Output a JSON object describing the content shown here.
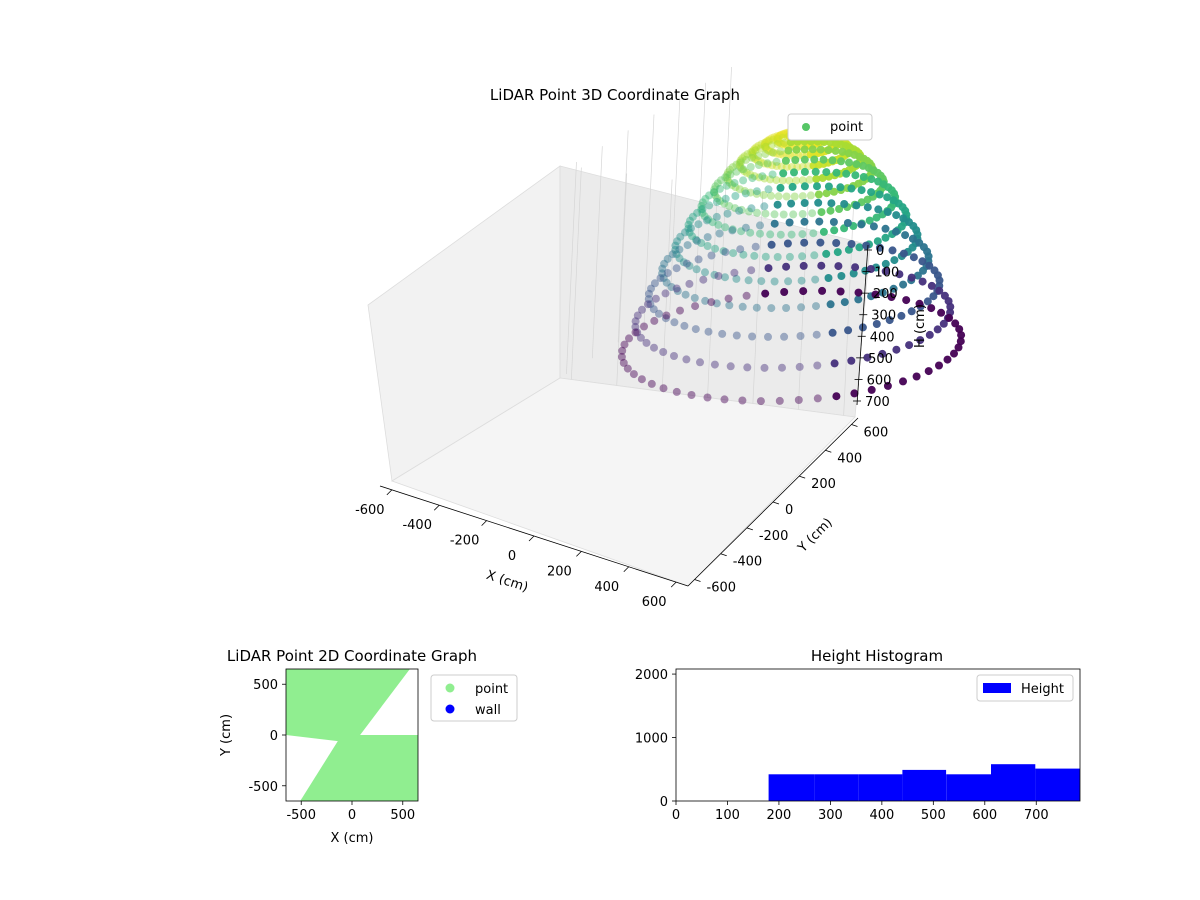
{
  "figure": {
    "background": "#ffffff"
  },
  "chart_data": [
    {
      "type": "scatter",
      "title": "LiDAR Point 3D Coordinate Graph",
      "xlabel": "X (cm)",
      "ylabel": "Y (cm)",
      "zlabel": "H (cm)",
      "xlim": [
        -650,
        650
      ],
      "ylim": [
        -650,
        650
      ],
      "zlim": [
        0,
        780
      ],
      "z_inverted": true,
      "xticks": [
        -600,
        -400,
        -200,
        0,
        200,
        400,
        600
      ],
      "yticks": [
        -600,
        -400,
        -200,
        0,
        200,
        400,
        600
      ],
      "zticks": [
        0,
        100,
        200,
        300,
        400,
        500,
        600,
        700
      ],
      "colormap": "viridis",
      "legend": {
        "entries": [
          {
            "name": "point",
            "color": "#56c667"
          }
        ],
        "placement": "top-right"
      },
      "surface": {
        "shape": "bowl",
        "rim_height": 780,
        "rim_radius": 650,
        "center_height": 0
      },
      "grid": true
    },
    {
      "type": "scatter",
      "title": "LiDAR Point 2D Coordinate Graph",
      "xlabel": "X (cm)",
      "ylabel": "Y (cm)",
      "xlim": [
        -650,
        650
      ],
      "ylim": [
        -650,
        650
      ],
      "xticks": [
        -500,
        0,
        500
      ],
      "yticks": [
        -500,
        0,
        500
      ],
      "legend": {
        "entries": [
          {
            "name": "point",
            "color": "#90ee90"
          },
          {
            "name": "wall",
            "color": "#0000ff"
          }
        ],
        "placement": "outside-right"
      },
      "regions": {
        "upper_boundary": [
          [
            -650,
            650
          ],
          [
            -300,
            650
          ],
          [
            -100,
            0
          ],
          [
            650,
            0
          ]
        ],
        "lower_boundary": [
          [
            -650,
            0
          ],
          [
            -100,
            0
          ],
          [
            -490,
            -650
          ],
          [
            -650,
            -650
          ]
        ],
        "notes": "green fill everywhere except the two white wedges"
      },
      "white_wedges": [
        [
          [
            80,
            0
          ],
          [
            650,
            0
          ],
          [
            650,
            650
          ],
          [
            570,
            650
          ]
        ],
        [
          [
            -650,
            0
          ],
          [
            -140,
            -60
          ],
          [
            -510,
            -650
          ],
          [
            -650,
            -650
          ]
        ]
      ]
    },
    {
      "type": "bar",
      "title": "Height Histogram",
      "xlabel": "",
      "ylabel": "",
      "xlim": [
        0,
        785
      ],
      "ylim": [
        0,
        2080
      ],
      "xticks": [
        0,
        100,
        200,
        300,
        400,
        500,
        600,
        700
      ],
      "yticks": [
        0,
        1000,
        2000
      ],
      "color": "#0000ff",
      "legend": {
        "entries": [
          {
            "name": "Height",
            "color": "#0000ff"
          }
        ],
        "placement": "top-right"
      },
      "bins": [
        {
          "x0": 180,
          "x1": 270,
          "value": 420
        },
        {
          "x0": 270,
          "x1": 355,
          "value": 420
        },
        {
          "x0": 355,
          "x1": 440,
          "value": 420
        },
        {
          "x0": 440,
          "x1": 525,
          "value": 490
        },
        {
          "x0": 525,
          "x1": 612,
          "value": 420
        },
        {
          "x0": 612,
          "x1": 698,
          "value": 580
        },
        {
          "x0": 698,
          "x1": 785,
          "value": 510
        }
      ]
    }
  ]
}
